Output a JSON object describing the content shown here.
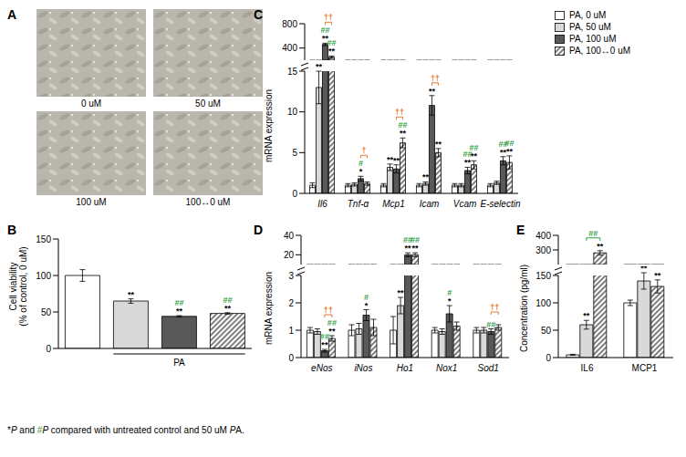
{
  "chart_data": [
    {
      "type": "image",
      "title": "A",
      "labels": [
        "0 uM",
        "50 uM",
        "100 uM",
        "100↔0 uM"
      ]
    },
    {
      "type": "bar",
      "title": "B",
      "ylabel": "Cell viability\n(% of control, 0 uM)",
      "xlabel": "PA",
      "categories": [
        null,
        null,
        null,
        null
      ],
      "values": [
        100,
        65,
        44,
        48
      ],
      "errors": [
        8,
        3,
        1,
        1
      ],
      "colors": [
        "#ffffff",
        "#d9d9d9",
        "#595959",
        "#7f7f7f"
      ],
      "annotations": [
        null,
        "**",
        "** ##",
        "** ##"
      ],
      "ylim": [
        0,
        150
      ],
      "yticks": [
        0,
        50,
        100,
        150
      ]
    },
    {
      "type": "bar",
      "title": "C",
      "ylabel": "mRNA expression",
      "categories": [
        "Il6",
        "Tnf-α",
        "Mcp1",
        "Icam",
        "Vcam",
        "E-selectin"
      ],
      "ylim": [
        [
          0,
          15
        ],
        [
          200,
          800
        ]
      ],
      "yticks": [
        [
          0,
          5,
          10,
          15
        ],
        [
          400,
          800
        ]
      ],
      "legend": "upper right",
      "series": [
        {
          "name": "PA, 0 uM",
          "color": "#ffffff",
          "values": [
            1,
            1,
            1,
            1,
            1,
            1
          ],
          "errors": [
            0.3,
            0.2,
            0.2,
            0.2,
            0.2,
            0.2
          ],
          "annotations": [
            null,
            null,
            null,
            null,
            null,
            null
          ]
        },
        {
          "name": "PA, 50 uM",
          "color": "#d9d9d9",
          "values": [
            13,
            1.1,
            3.2,
            1.2,
            1,
            1.3
          ],
          "errors": [
            2,
            0.2,
            0.4,
            0.2,
            0.2,
            0.2
          ],
          "annotations": [
            "**",
            null,
            "**",
            "**",
            null,
            null
          ]
        },
        {
          "name": "PA, 100 uM",
          "color": "#595959",
          "values": [
            460,
            1.8,
            3,
            10.8,
            2.8,
            4
          ],
          "errors": [
            20,
            0.3,
            0.5,
            1.2,
            0.4,
            0.5
          ],
          "annotations": [
            "** ##",
            "* #",
            "**",
            "**",
            "** ##",
            "** ##"
          ]
        },
        {
          "name": "PA, 100↔0 uM",
          "color": "#7f7f7f",
          "values": [
            250,
            1.2,
            6.2,
            5,
            3.5,
            3.8
          ],
          "errors": [
            20,
            0.2,
            0.6,
            0.5,
            0.5,
            0.8
          ],
          "annotations": [
            "** ##",
            null,
            "** ##",
            "**",
            "** ##",
            "** ##"
          ]
        }
      ],
      "brackets": [
        {
          "category": "Il6",
          "label": "††"
        },
        {
          "category": "Tnf-α",
          "label": "†"
        },
        {
          "category": "Mcp1",
          "label": "††"
        },
        {
          "category": "Icam",
          "label": "††"
        }
      ]
    },
    {
      "type": "bar",
      "title": "D",
      "ylabel": "mRNA expression",
      "categories": [
        "eNos",
        "iNos",
        "Ho1",
        "Nox1",
        "Sod1"
      ],
      "ylim": [
        [
          0,
          3
        ],
        [
          10,
          40
        ]
      ],
      "yticks": [
        [
          0,
          1,
          2,
          3
        ],
        [
          20,
          40
        ]
      ],
      "series": [
        {
          "color": "#ffffff",
          "values": [
            1,
            1,
            1,
            1,
            1
          ],
          "errors": [
            0.1,
            0.2,
            0.5,
            0.1,
            0.1
          ],
          "annotations": [
            null,
            null,
            null,
            null,
            null
          ]
        },
        {
          "color": "#d9d9d9",
          "values": [
            0.95,
            1.05,
            1.9,
            0.95,
            1
          ],
          "errors": [
            0.1,
            0.2,
            0.3,
            0.1,
            0.1
          ],
          "annotations": [
            null,
            null,
            "**",
            null,
            null
          ]
        },
        {
          "color": "#595959",
          "values": [
            0.25,
            1.55,
            20,
            1.6,
            0.95
          ],
          "errors": [
            0.05,
            0.2,
            2,
            0.3,
            0.1
          ],
          "annotations": [
            "** ##",
            "* #",
            "** ##",
            "* #",
            "##"
          ]
        },
        {
          "color": "#7f7f7f",
          "values": [
            0.7,
            1.1,
            20,
            1.15,
            1.1
          ],
          "errors": [
            0.1,
            0.3,
            2,
            0.15,
            0.1
          ],
          "annotations": [
            "** ##",
            null,
            "** ##",
            null,
            null
          ]
        }
      ],
      "brackets": [
        {
          "category": "eNos",
          "label": "††"
        },
        {
          "category": "Sod1",
          "label": "††"
        }
      ]
    },
    {
      "type": "bar",
      "title": "E",
      "ylabel": "Concentration (pg/ml)",
      "categories": [
        "IL6",
        "MCP1"
      ],
      "ylim": [
        [
          0,
          150
        ],
        [
          200,
          400
        ]
      ],
      "yticks": [
        [
          0,
          50,
          100,
          150
        ],
        [
          300,
          400
        ]
      ],
      "series": [
        {
          "color": "#ffffff",
          "values": [
            5,
            100
          ],
          "errors": [
            1,
            5
          ],
          "annotations": [
            null,
            null
          ]
        },
        {
          "color": "#d9d9d9",
          "values": [
            60,
            140
          ],
          "errors": [
            8,
            15
          ],
          "annotations": [
            "**",
            "**"
          ]
        },
        {
          "color": "#7f7f7f",
          "values": [
            280,
            130
          ],
          "errors": [
            15,
            12
          ],
          "annotations": [
            "**",
            "**"
          ]
        }
      ],
      "brackets": [
        {
          "category": "IL6",
          "label": "##"
        }
      ]
    }
  ],
  "footnote": "*P and #P compared with untreated control and 50 uM PA."
}
